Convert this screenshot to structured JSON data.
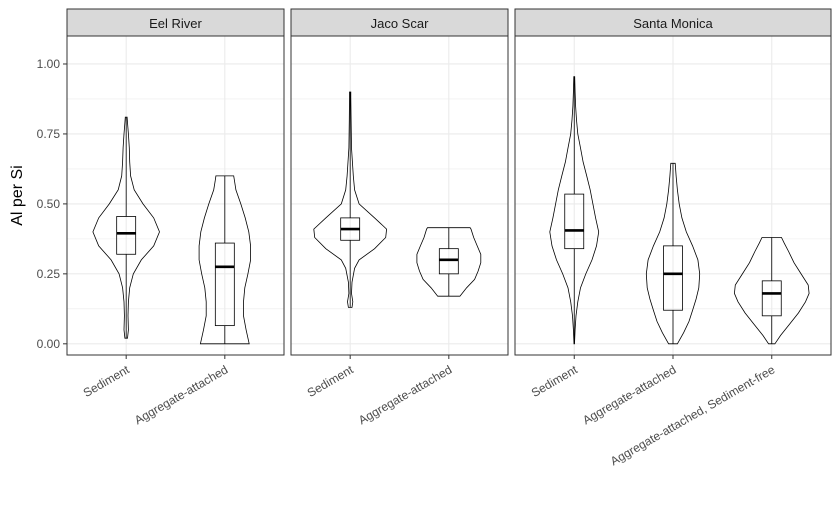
{
  "chart_data": {
    "type": "violin",
    "ylabel": "Al per Si",
    "ylim": [
      -0.04,
      1.1
    ],
    "yticks": [
      0.0,
      0.25,
      0.5,
      0.75,
      1.0
    ],
    "ytick_labels": [
      "0.00",
      "0.25",
      "0.50",
      "0.75",
      "1.00"
    ],
    "grid": true,
    "colors": {
      "strip_fill": "#d9d9d9",
      "panel_border": "#333333",
      "grid": "#ebebeb",
      "outline": "#000000"
    },
    "panels": [
      {
        "name": "Eel River",
        "groups": [
          {
            "label": "Sediment",
            "box": {
              "min": 0.02,
              "q1": 0.32,
              "median": 0.395,
              "q3": 0.455,
              "max": 0.81
            },
            "violin": [
              [
                0.02,
                0.03
              ],
              [
                0.05,
                0.05
              ],
              [
                0.1,
                0.04
              ],
              [
                0.15,
                0.05
              ],
              [
                0.2,
                0.08
              ],
              [
                0.25,
                0.16
              ],
              [
                0.3,
                0.34
              ],
              [
                0.35,
                0.62
              ],
              [
                0.4,
                0.75
              ],
              [
                0.45,
                0.62
              ],
              [
                0.5,
                0.38
              ],
              [
                0.55,
                0.18
              ],
              [
                0.6,
                0.1
              ],
              [
                0.65,
                0.08
              ],
              [
                0.7,
                0.07
              ],
              [
                0.75,
                0.05
              ],
              [
                0.79,
                0.03
              ],
              [
                0.81,
                0.02
              ]
            ]
          },
          {
            "label": "Aggregate-attached",
            "box": {
              "min": 0.0,
              "q1": 0.065,
              "median": 0.275,
              "q3": 0.36,
              "max": 0.6
            },
            "violin": [
              [
                0.0,
                0.55
              ],
              [
                0.05,
                0.48
              ],
              [
                0.1,
                0.42
              ],
              [
                0.15,
                0.42
              ],
              [
                0.2,
                0.45
              ],
              [
                0.25,
                0.52
              ],
              [
                0.3,
                0.58
              ],
              [
                0.35,
                0.58
              ],
              [
                0.4,
                0.54
              ],
              [
                0.45,
                0.46
              ],
              [
                0.5,
                0.36
              ],
              [
                0.55,
                0.25
              ],
              [
                0.58,
                0.22
              ],
              [
                0.6,
                0.2
              ]
            ]
          }
        ]
      },
      {
        "name": "Jaco Scar",
        "groups": [
          {
            "label": "Sediment",
            "box": {
              "min": 0.13,
              "q1": 0.37,
              "median": 0.41,
              "q3": 0.45,
              "max": 0.9
            },
            "violin": [
              [
                0.13,
                0.04
              ],
              [
                0.15,
                0.06
              ],
              [
                0.18,
                0.03
              ],
              [
                0.22,
                0.04
              ],
              [
                0.27,
                0.1
              ],
              [
                0.3,
                0.2
              ],
              [
                0.34,
                0.55
              ],
              [
                0.38,
                0.8
              ],
              [
                0.41,
                0.82
              ],
              [
                0.45,
                0.55
              ],
              [
                0.5,
                0.2
              ],
              [
                0.55,
                0.1
              ],
              [
                0.6,
                0.07
              ],
              [
                0.65,
                0.05
              ],
              [
                0.7,
                0.03
              ],
              [
                0.8,
                0.02
              ],
              [
                0.88,
                0.015
              ],
              [
                0.9,
                0.015
              ]
            ]
          },
          {
            "label": "Aggregate-attached",
            "box": {
              "min": 0.17,
              "q1": 0.25,
              "median": 0.3,
              "q3": 0.34,
              "max": 0.415
            },
            "violin": [
              [
                0.17,
                0.25
              ],
              [
                0.2,
                0.4
              ],
              [
                0.23,
                0.58
              ],
              [
                0.26,
                0.66
              ],
              [
                0.29,
                0.72
              ],
              [
                0.32,
                0.72
              ],
              [
                0.35,
                0.64
              ],
              [
                0.38,
                0.56
              ],
              [
                0.41,
                0.5
              ],
              [
                0.415,
                0.48
              ]
            ]
          }
        ]
      },
      {
        "name": "Santa Monica",
        "groups": [
          {
            "label": "Sediment",
            "box": {
              "min": 0.0,
              "q1": 0.34,
              "median": 0.405,
              "q3": 0.535,
              "max": 0.955
            },
            "violin": [
              [
                0.0,
                0.005
              ],
              [
                0.05,
                0.02
              ],
              [
                0.1,
                0.04
              ],
              [
                0.15,
                0.08
              ],
              [
                0.2,
                0.14
              ],
              [
                0.25,
                0.26
              ],
              [
                0.3,
                0.4
              ],
              [
                0.35,
                0.5
              ],
              [
                0.4,
                0.55
              ],
              [
                0.45,
                0.48
              ],
              [
                0.5,
                0.42
              ],
              [
                0.55,
                0.36
              ],
              [
                0.6,
                0.28
              ],
              [
                0.65,
                0.2
              ],
              [
                0.7,
                0.14
              ],
              [
                0.75,
                0.08
              ],
              [
                0.8,
                0.05
              ],
              [
                0.85,
                0.03
              ],
              [
                0.9,
                0.02
              ],
              [
                0.955,
                0.01
              ]
            ]
          },
          {
            "label": "Aggregate-attached",
            "box": {
              "min": 0.0,
              "q1": 0.12,
              "median": 0.25,
              "q3": 0.35,
              "max": 0.645
            },
            "violin": [
              [
                0.0,
                0.1
              ],
              [
                0.04,
                0.24
              ],
              [
                0.08,
                0.36
              ],
              [
                0.12,
                0.44
              ],
              [
                0.16,
                0.52
              ],
              [
                0.2,
                0.58
              ],
              [
                0.25,
                0.6
              ],
              [
                0.3,
                0.56
              ],
              [
                0.35,
                0.44
              ],
              [
                0.4,
                0.3
              ],
              [
                0.45,
                0.2
              ],
              [
                0.5,
                0.14
              ],
              [
                0.55,
                0.1
              ],
              [
                0.6,
                0.07
              ],
              [
                0.645,
                0.05
              ]
            ]
          },
          {
            "label": "Aggregate-attached, Sediment-free",
            "box": {
              "min": 0.0,
              "q1": 0.1,
              "median": 0.18,
              "q3": 0.225,
              "max": 0.38
            },
            "violin": [
              [
                0.0,
                0.07
              ],
              [
                0.03,
                0.2
              ],
              [
                0.07,
                0.4
              ],
              [
                0.11,
                0.6
              ],
              [
                0.15,
                0.76
              ],
              [
                0.18,
                0.84
              ],
              [
                0.21,
                0.82
              ],
              [
                0.25,
                0.66
              ],
              [
                0.29,
                0.5
              ],
              [
                0.33,
                0.38
              ],
              [
                0.36,
                0.28
              ],
              [
                0.38,
                0.22
              ]
            ]
          }
        ]
      }
    ]
  }
}
